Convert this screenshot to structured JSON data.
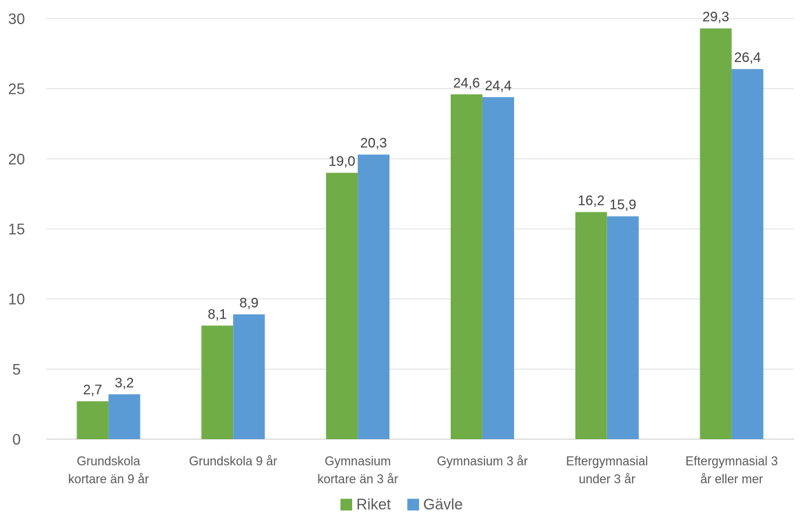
{
  "chart_data": {
    "type": "bar",
    "categories": [
      [
        "Grundskola",
        "kortare än 9 år"
      ],
      [
        "Grundskola 9 år"
      ],
      [
        "Gymnasium",
        "kortare än 3 år"
      ],
      [
        "Gymnasium 3 år"
      ],
      [
        "Eftergymnasial",
        "under 3 år"
      ],
      [
        "Eftergymnasial 3",
        "år eller mer"
      ]
    ],
    "series": [
      {
        "name": "Riket",
        "color": "#70ad47",
        "values": [
          2.7,
          8.1,
          19.0,
          24.6,
          16.2,
          29.3
        ],
        "labels": [
          "2,7",
          "8,1",
          "19,0",
          "24,6",
          "16,2",
          "29,3"
        ]
      },
      {
        "name": "Gävle",
        "color": "#5b9bd5",
        "values": [
          3.2,
          8.9,
          20.3,
          24.4,
          15.9,
          26.4
        ],
        "labels": [
          "3,2",
          "8,9",
          "20,3",
          "24,4",
          "15,9",
          "26,4"
        ]
      }
    ],
    "yticks": [
      "0",
      "5",
      "10",
      "15",
      "20",
      "25",
      "30"
    ],
    "ylim": [
      0,
      30
    ],
    "grid": true,
    "legend": "bottom"
  }
}
